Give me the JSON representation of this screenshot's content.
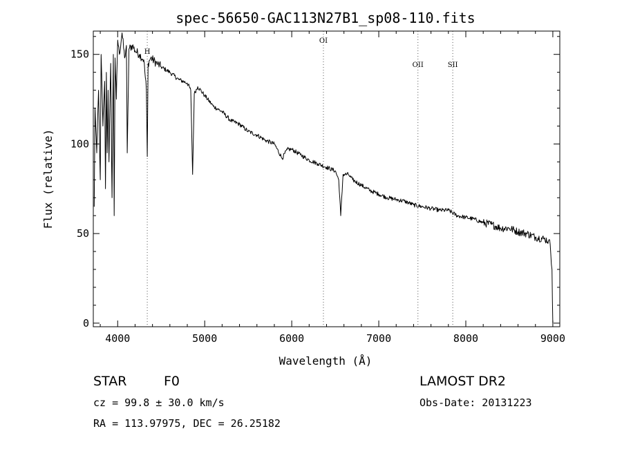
{
  "chart_data": {
    "type": "line",
    "title": "spec-56650-GAC113N27B1_sp08-110.fits",
    "xlabel": "Wavelength (Å)",
    "ylabel": "Flux (relative)",
    "xlim": [
      3720,
      9080
    ],
    "ylim": [
      -2,
      163
    ],
    "x_ticks": [
      4000,
      5000,
      6000,
      7000,
      8000,
      9000
    ],
    "y_ticks": [
      0,
      50,
      100,
      150
    ],
    "grid": false,
    "series": [
      {
        "x": [
          3730,
          3740,
          3760,
          3780,
          3800,
          3810,
          3830,
          3850,
          3860,
          3870,
          3880,
          3890,
          3900,
          3920,
          3935,
          3950,
          3960,
          3970,
          3985,
          4000,
          4020,
          4050,
          4080,
          4100,
          4110,
          4130,
          4170,
          4200,
          4250,
          4300,
          4330,
          4340,
          4350,
          4380,
          4450,
          4500,
          4600,
          4700,
          4800,
          4840,
          4861,
          4880,
          4920,
          5000,
          5100,
          5200,
          5300,
          5400,
          5500,
          5600,
          5700,
          5800,
          5890,
          5950,
          6000,
          6100,
          6200,
          6300,
          6400,
          6500,
          6540,
          6563,
          6590,
          6650,
          6700,
          6800,
          6900,
          7000,
          7100,
          7200,
          7300,
          7400,
          7500,
          7600,
          7700,
          7800,
          7900,
          8000,
          8100,
          8200,
          8300,
          8400,
          8500,
          8600,
          8700,
          8800,
          8900,
          8950,
          8970,
          8990,
          9000
        ],
        "y": [
          65,
          120,
          95,
          130,
          80,
          150,
          110,
          135,
          75,
          140,
          95,
          130,
          90,
          145,
          70,
          150,
          60,
          148,
          125,
          158,
          150,
          162,
          148,
          155,
          95,
          153,
          155,
          152,
          150,
          147,
          130,
          93,
          145,
          148,
          145,
          143,
          140,
          136,
          134,
          130,
          83,
          128,
          132,
          127,
          121,
          118,
          113,
          111,
          107,
          105,
          102,
          100,
          92,
          97,
          97,
          94,
          91,
          89,
          87,
          85,
          80,
          60,
          83,
          83,
          80,
          77,
          74,
          72,
          70,
          69,
          68,
          66,
          65,
          64,
          63,
          63,
          60,
          59,
          58,
          56,
          55,
          53,
          53,
          51,
          50,
          48,
          47,
          46,
          44,
          30,
          0
        ]
      }
    ],
    "reference_lines": [
      {
        "x": 4340,
        "label": "H"
      },
      {
        "x": 6364,
        "label": "OI"
      },
      {
        "x": 7450,
        "label": "OII"
      },
      {
        "x": 7850,
        "label": "SII"
      }
    ]
  },
  "info": {
    "class_label": "STAR",
    "subclass": "F0",
    "survey": "LAMOST DR2",
    "cz": "cz = 99.8 ± 30.0 km/s",
    "obs_date": "Obs-Date: 20131223",
    "coords": "RA = 113.97975, DEC =  26.25182"
  }
}
